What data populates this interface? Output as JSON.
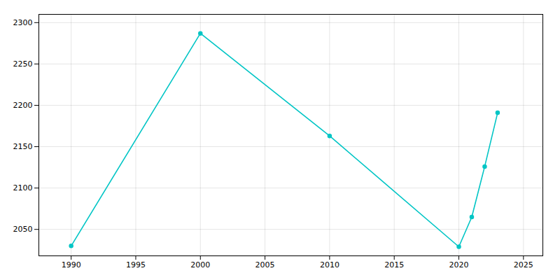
{
  "chart_data": {
    "type": "line",
    "x": [
      1990,
      2000,
      2010,
      2020,
      2021,
      2022,
      2023
    ],
    "values": [
      2030,
      2287,
      2163,
      2029,
      2065,
      2126,
      2191
    ],
    "color": "#00C5C5",
    "marker": "o",
    "xlim": [
      1987.5,
      2026.5
    ],
    "ylim": [
      2018,
      2310
    ],
    "xticks": [
      1990,
      1995,
      2000,
      2005,
      2010,
      2015,
      2020,
      2025
    ],
    "yticks": [
      2050,
      2100,
      2150,
      2200,
      2250,
      2300
    ],
    "grid": true
  }
}
